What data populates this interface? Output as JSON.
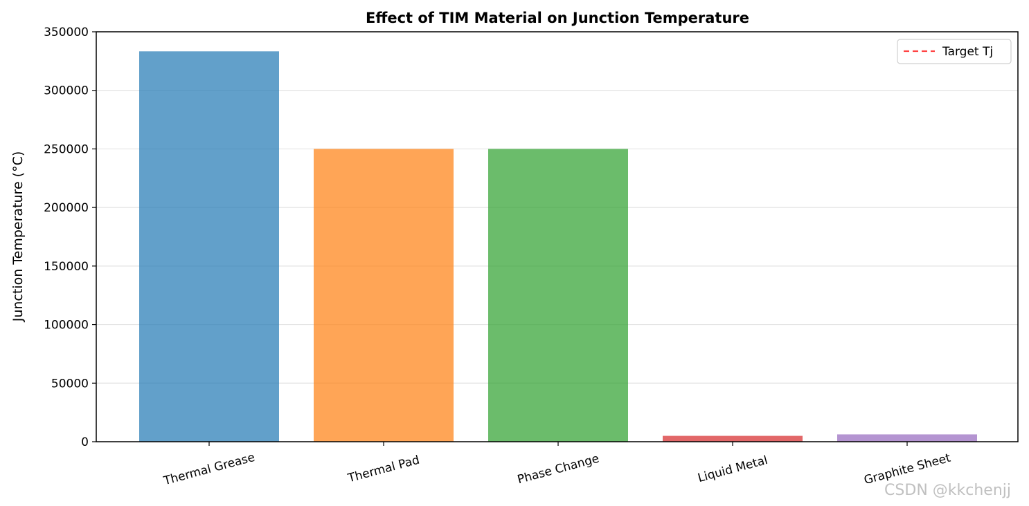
{
  "chart_data": {
    "type": "bar",
    "title": "Effect of TIM Material on Junction Temperature",
    "xlabel": "",
    "ylabel": "Junction Temperature (°C)",
    "categories": [
      "Thermal Grease",
      "Thermal Pad",
      "Phase Change",
      "Liquid Metal",
      "Graphite Sheet"
    ],
    "values": [
      333300,
      250000,
      250000,
      5000,
      6250
    ],
    "bar_colors": [
      "#1f77b4",
      "#ff7f0e",
      "#2ca02c",
      "#d62728",
      "#9467bd"
    ],
    "ylim": [
      0,
      350000
    ],
    "yticks": [
      "0",
      "50000",
      "100000",
      "150000",
      "200000",
      "250000",
      "300000",
      "350000"
    ],
    "grid": "horizontal",
    "legend": {
      "position": "top-right",
      "entries": [
        {
          "label": "Target Tj",
          "color": "#ff4444",
          "style": "dashed"
        }
      ]
    }
  },
  "watermark": "CSDN @kkchenjj"
}
